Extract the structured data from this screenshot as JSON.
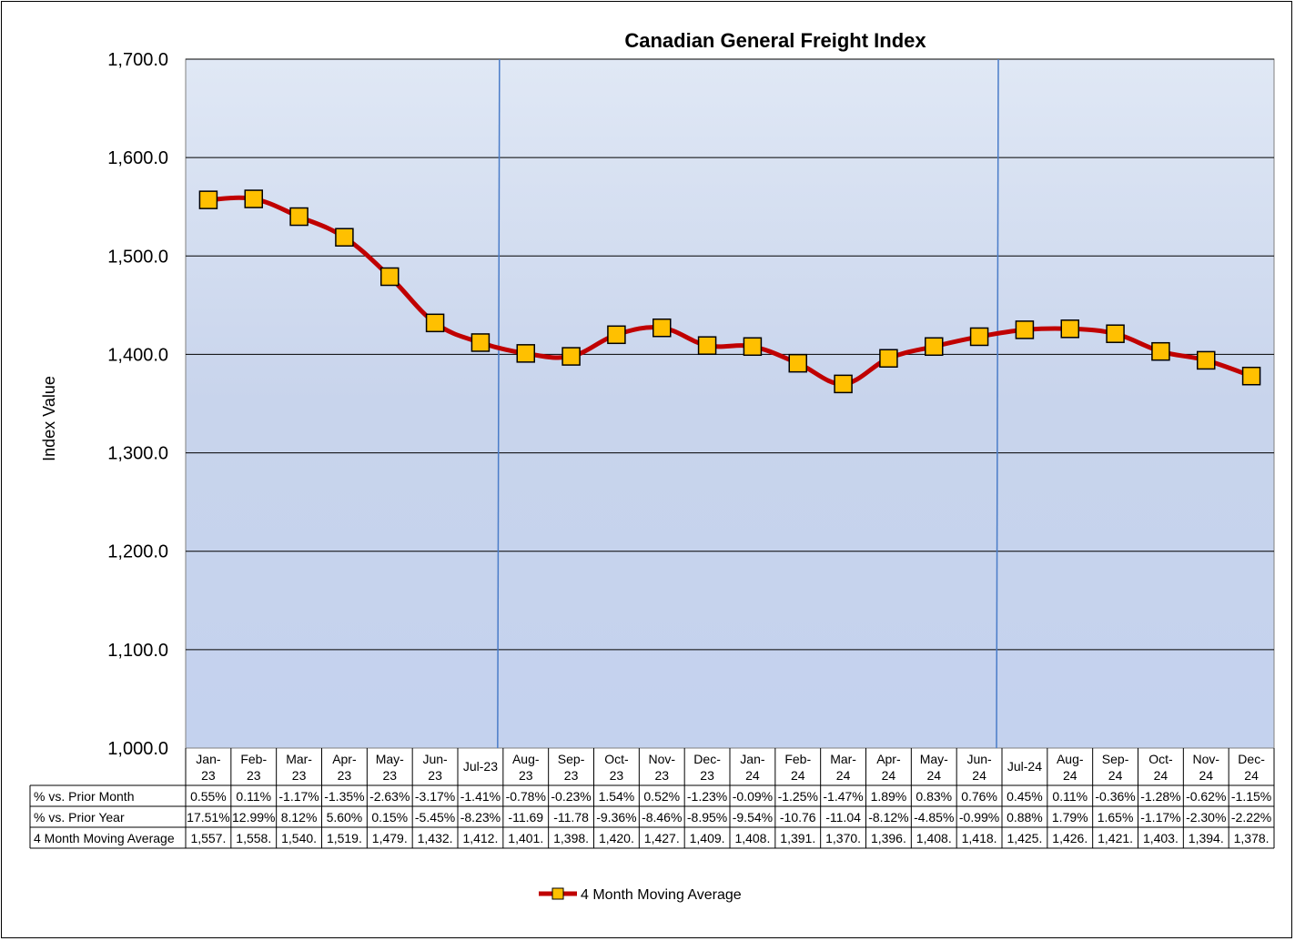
{
  "chart_data": {
    "type": "line",
    "title": "Canadian General Freight Index",
    "ylabel": "Index Value",
    "ylim": [
      1000,
      1700
    ],
    "yticks": [
      "1,000.0",
      "1,100.0",
      "1,200.0",
      "1,300.0",
      "1,400.0",
      "1,500.0",
      "1,600.0",
      "1,700.0"
    ],
    "grid": true,
    "categories": [
      [
        "Jan-",
        "23"
      ],
      [
        "Feb-",
        "23"
      ],
      [
        "Mar-",
        "23"
      ],
      [
        "Apr-",
        "23"
      ],
      [
        "May-",
        "23"
      ],
      [
        "Jun-",
        "23"
      ],
      [
        "Jul-23"
      ],
      [
        "Aug-",
        "23"
      ],
      [
        "Sep-",
        "23"
      ],
      [
        "Oct-",
        "23"
      ],
      [
        "Nov-",
        "23"
      ],
      [
        "Dec-",
        "23"
      ],
      [
        "Jan-",
        "24"
      ],
      [
        "Feb-",
        "24"
      ],
      [
        "Mar-",
        "24"
      ],
      [
        "Apr-",
        "24"
      ],
      [
        "May-",
        "24"
      ],
      [
        "Jun-",
        "24"
      ],
      [
        "Jul-24"
      ],
      [
        "Aug-",
        "24"
      ],
      [
        "Sep-",
        "24"
      ],
      [
        "Oct-",
        "24"
      ],
      [
        "Nov-",
        "24"
      ],
      [
        "Dec-",
        "24"
      ]
    ],
    "series": [
      {
        "name": "4 Month Moving Average",
        "color": "#c00000",
        "marker_color": "#ffc000",
        "values": [
          1557,
          1558,
          1540,
          1519,
          1479,
          1432,
          1412,
          1401,
          1398,
          1420,
          1427,
          1409,
          1408,
          1391,
          1370,
          1396,
          1408,
          1418,
          1425,
          1426,
          1421,
          1403,
          1394,
          1378
        ]
      }
    ],
    "vertical_markers_after_index": [
      6,
      17
    ],
    "legend_position": "bottom",
    "table": {
      "rows": [
        {
          "label": "% vs. Prior Month",
          "values": [
            "0.55%",
            "0.11%",
            "-1.17%",
            "-1.35%",
            "-2.63%",
            "-3.17%",
            "-1.41%",
            "-0.78%",
            "-0.23%",
            "1.54%",
            "0.52%",
            "-1.23%",
            "-0.09%",
            "-1.25%",
            "-1.47%",
            "1.89%",
            "0.83%",
            "0.76%",
            "0.45%",
            "0.11%",
            "-0.36%",
            "-1.28%",
            "-0.62%",
            "-1.15%"
          ]
        },
        {
          "label": "% vs. Prior Year",
          "values": [
            "17.51%",
            "12.99%",
            "8.12%",
            "5.60%",
            "0.15%",
            "-5.45%",
            "-8.23%",
            "-11.69",
            "-11.78",
            "-9.36%",
            "-8.46%",
            "-8.95%",
            "-9.54%",
            "-10.76",
            "-11.04",
            "-8.12%",
            "-4.85%",
            "-0.99%",
            "0.88%",
            "1.79%",
            "1.65%",
            "-1.17%",
            "-2.30%",
            "-2.22%"
          ]
        },
        {
          "label": "4 Month Moving Average",
          "values": [
            "1,557.",
            "1,558.",
            "1,540.",
            "1,519.",
            "1,479.",
            "1,432.",
            "1,412.",
            "1,401.",
            "1,398.",
            "1,420.",
            "1,427.",
            "1,409.",
            "1,408.",
            "1,391.",
            "1,370.",
            "1,396.",
            "1,408.",
            "1,418.",
            "1,425.",
            "1,426.",
            "1,421.",
            "1,403.",
            "1,394.",
            "1,378."
          ]
        }
      ]
    }
  }
}
